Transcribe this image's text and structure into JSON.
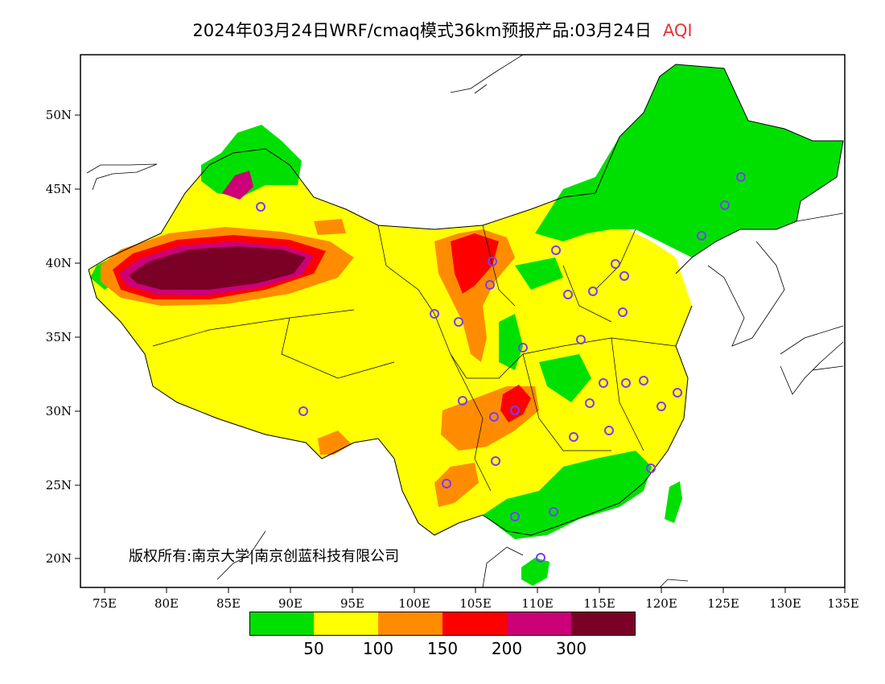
{
  "title": {
    "main": "2024年03月24日WRF/cmaq模式36km预报产品:03月24日",
    "variable": "AQI"
  },
  "copyright": "版权所有:南京大学|南京创蓝科技有限公司",
  "axes": {
    "lon_ticks": [
      "75E",
      "80E",
      "85E",
      "90E",
      "95E",
      "100E",
      "105E",
      "110E",
      "115E",
      "120E",
      "125E",
      "130E",
      "135E"
    ],
    "lat_ticks": [
      "20N",
      "25N",
      "30N",
      "35N",
      "40N",
      "45N",
      "50N"
    ]
  },
  "legend": {
    "colors": [
      "#00e000",
      "#ffff00",
      "#ff8c00",
      "#ff0000",
      "#cc0077",
      "#7a0026"
    ],
    "labels": [
      "50",
      "100",
      "150",
      "200",
      "300"
    ]
  },
  "colors": {
    "good": "#00e000",
    "moderate": "#ffff00",
    "unhealthy_sensitive": "#ff8c00",
    "unhealthy": "#ff0000",
    "very_unhealthy": "#cc0077",
    "hazardous": "#7a0026",
    "station_marker": "#7a3cff",
    "title_accent": "#e8343b"
  }
}
